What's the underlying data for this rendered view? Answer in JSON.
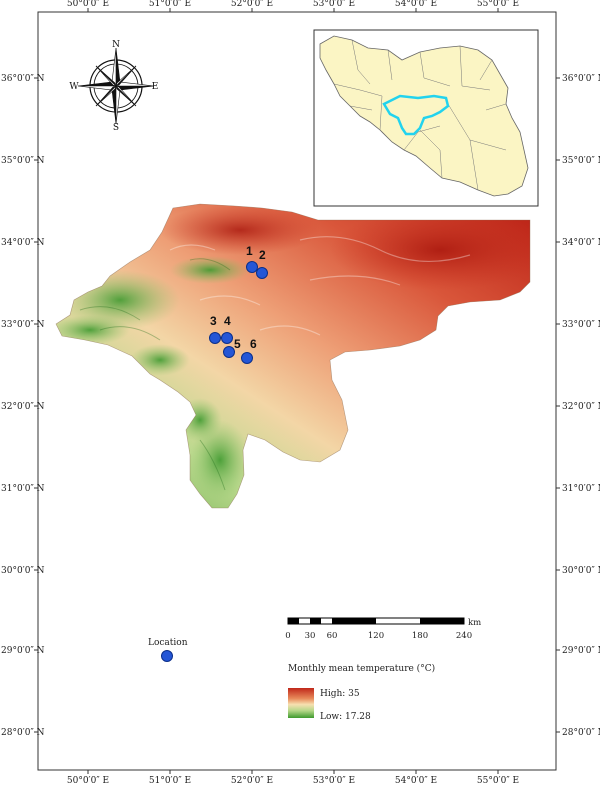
{
  "ticks": {
    "top": [
      "50°0′0″ E",
      "51°0′0″ E",
      "52°0′0″ E",
      "53°0′0″ E",
      "54°0′0″ E",
      "55°0′0″ E"
    ],
    "bottom": [
      "50°0′0″ E",
      "51°0′0″ E",
      "52°0′0″ E",
      "53°0′0″ E",
      "54°0′0″ E",
      "55°0′0″ E"
    ],
    "left": [
      "36°0′0″ N",
      "35°0′0″ N",
      "34°0′0″ N",
      "33°0′0″ N",
      "32°0′0″ N",
      "31°0′0″ N",
      "30°0′0″ N",
      "29°0′0″ N",
      "28°0′0″ N"
    ],
    "right": [
      "36°0′0″ N",
      "35°0′0″ N",
      "34°0′0″ N",
      "33°0′0″ N",
      "32°0′0″ N",
      "31°0′0″ N",
      "30°0′0″ N",
      "29°0′0″ N",
      "28°0′0″ N"
    ]
  },
  "compass": {
    "n": "N",
    "s": "S",
    "e": "E",
    "w": "W"
  },
  "sites": [
    {
      "label": "1"
    },
    {
      "label": "2"
    },
    {
      "label": "3"
    },
    {
      "label": "4"
    },
    {
      "label": "5"
    },
    {
      "label": "6"
    }
  ],
  "location_label": "Location",
  "scale": {
    "unit": "km",
    "labels": [
      "0",
      "30",
      "60",
      "120",
      "180",
      "240"
    ]
  },
  "legend": {
    "title": "Monthly mean temperature (°C)",
    "high": "High: 35",
    "low": "Low: 17.28"
  },
  "colors": {
    "high": "#c0271a",
    "mid": "#f5d8a8",
    "low": "#3e9a2e",
    "site_marker": "#2456d6",
    "inset_fill": "#fbf5c4",
    "inset_highlight": "#22d3ee"
  }
}
